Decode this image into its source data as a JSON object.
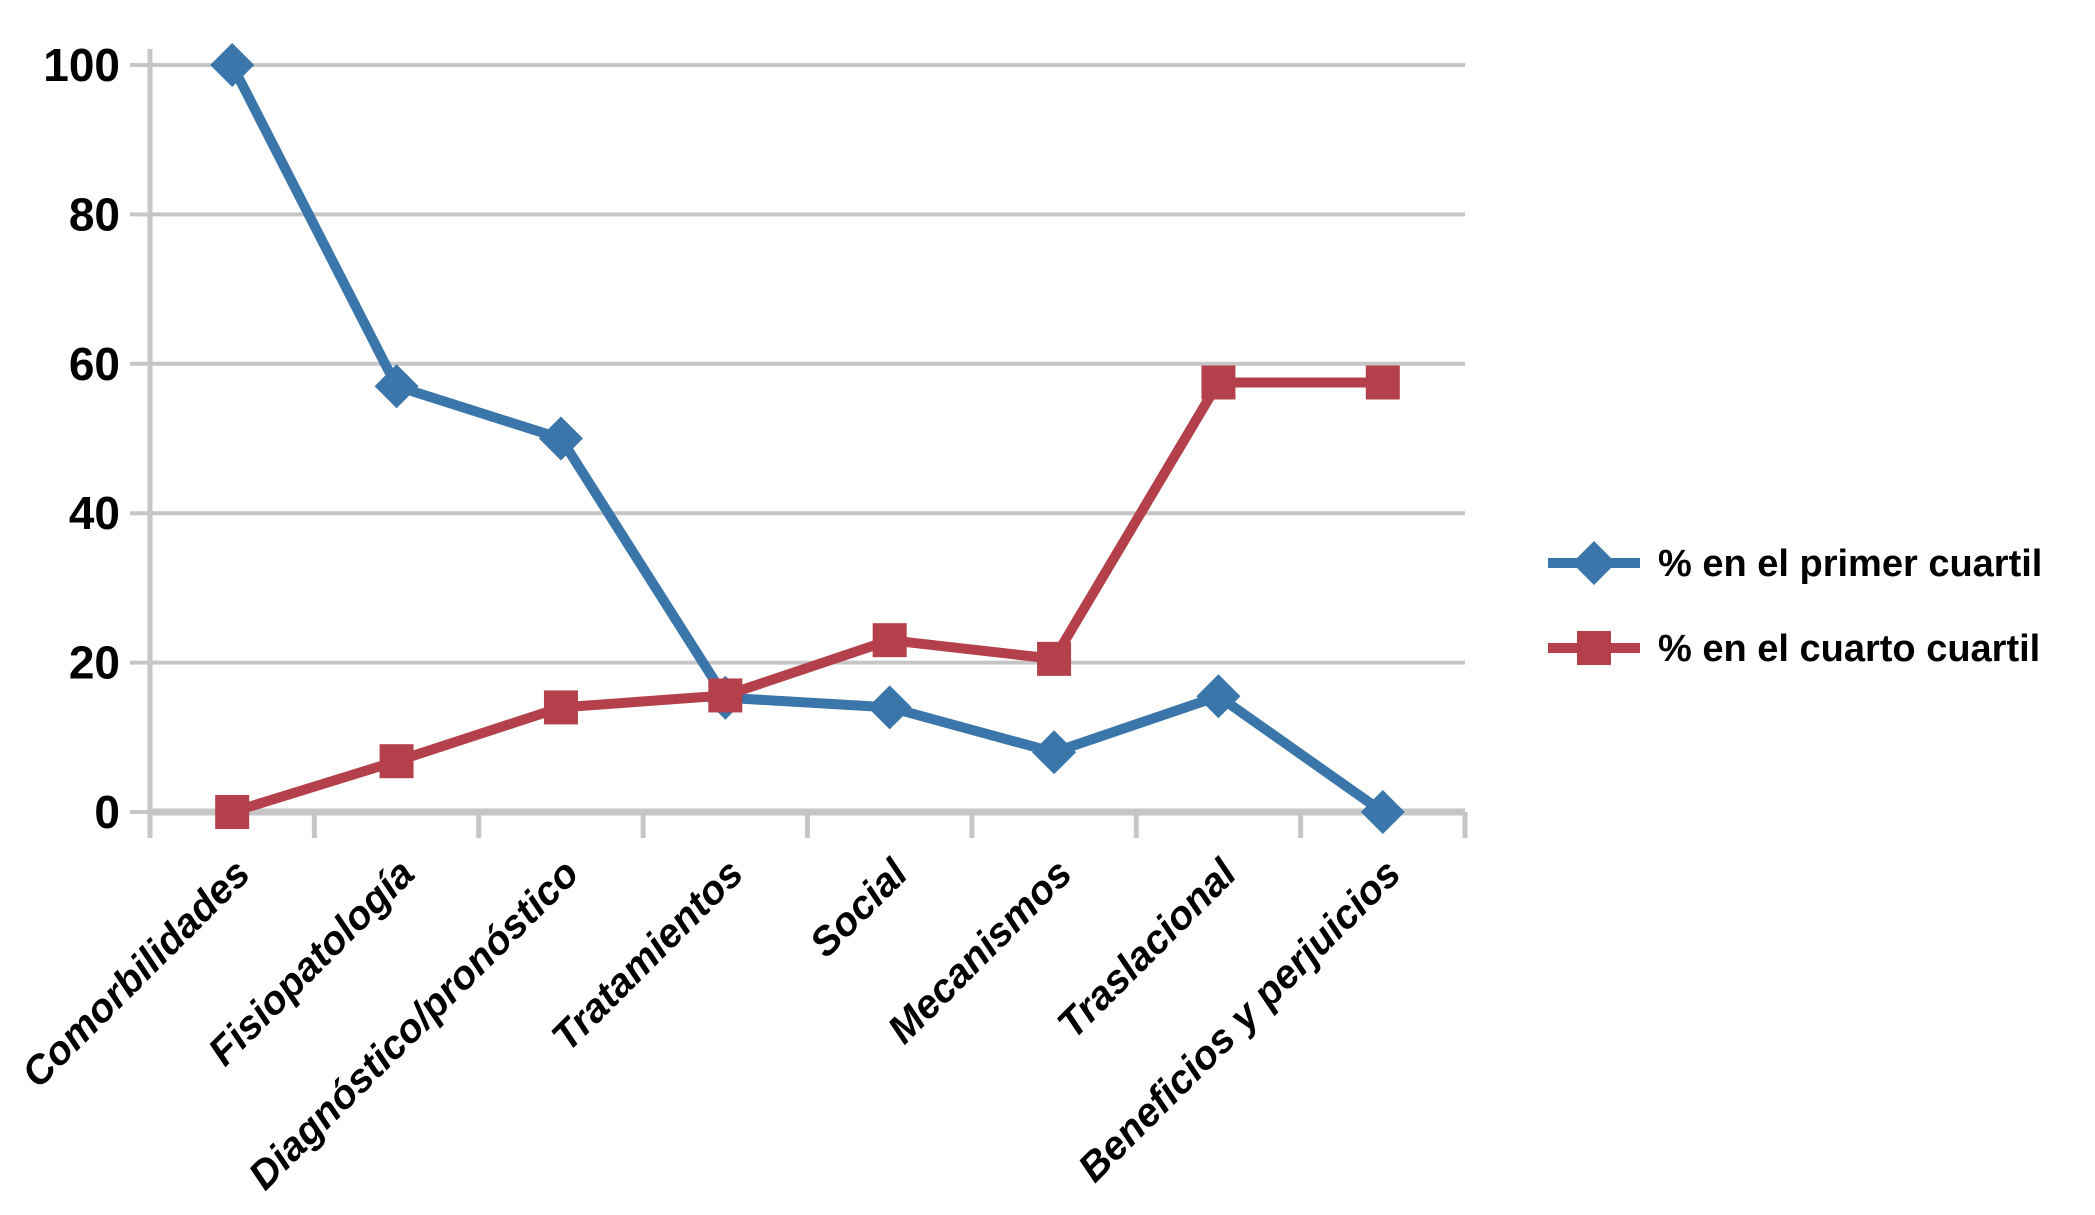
{
  "chart_data": {
    "type": "line",
    "title": "",
    "xlabel": "",
    "ylabel": "",
    "categories": [
      "Comorbilidades",
      "Fisiopatología",
      "Diagnóstico/pronóstico",
      "Tratamientos",
      "Social",
      "Mecanismos",
      "Traslacional",
      "Beneficios y perjuicios"
    ],
    "series": [
      {
        "name": "% en el primer cuartil",
        "marker": "diamond",
        "color": "#3A76AA",
        "values": [
          100,
          57,
          50,
          15.3,
          14,
          8,
          15.5,
          0
        ]
      },
      {
        "name": "% en el cuarto cuartil",
        "marker": "square",
        "color": "#B3404A",
        "values": [
          0,
          6.8,
          14,
          15.6,
          23,
          20.5,
          57.5,
          57.5
        ]
      }
    ],
    "ylim": [
      0,
      100
    ],
    "yticks": [
      0,
      20,
      40,
      60,
      80,
      100
    ],
    "grid": "horizontal",
    "legend_position": "right-middle",
    "axis_color": "#C6C6C6",
    "text_color": "#000000",
    "background": "#FFFFFF"
  }
}
